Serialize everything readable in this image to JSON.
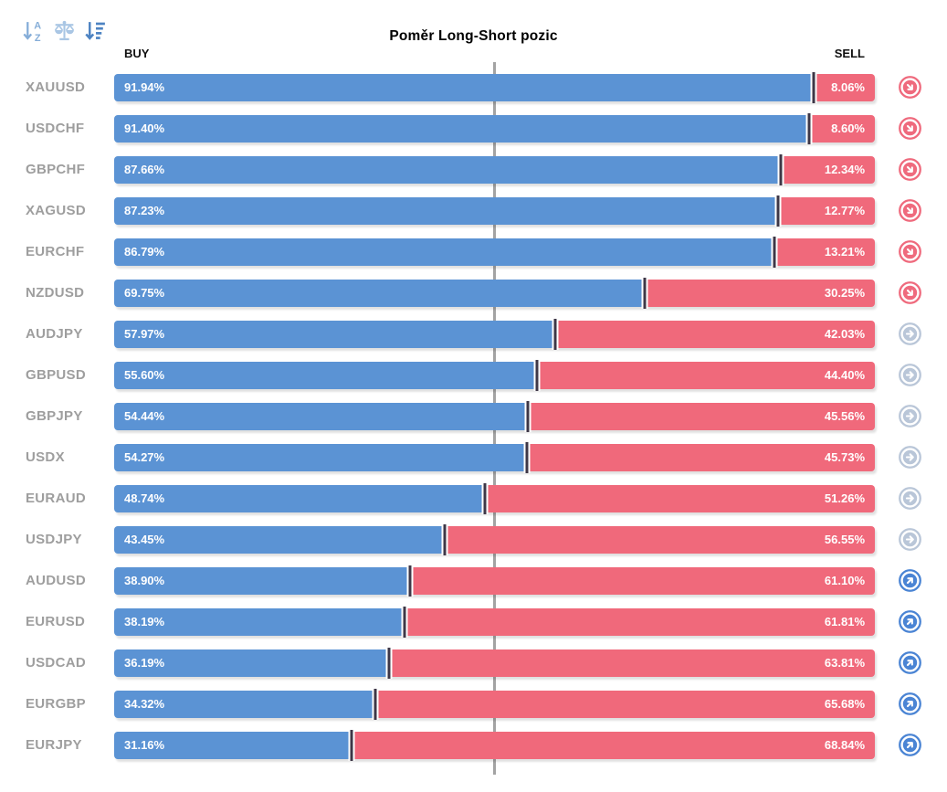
{
  "title": "Poměr Long-Short pozic",
  "toolbar": {
    "icons": [
      {
        "name": "sort-alphabetical-icon",
        "color": "#85add8"
      },
      {
        "name": "balance-scale-icon",
        "color": "#a9c6e4"
      },
      {
        "name": "sort-by-value-icon",
        "color": "#4d83c2"
      }
    ]
  },
  "columns": {
    "buy_label": "BUY",
    "sell_label": "SELL"
  },
  "colors": {
    "buy": "#5b93d4",
    "sell": "#f0697b",
    "divider": "#3e3747",
    "center_line": "#a3a3a3",
    "pair_label": "#9e9e9e",
    "signal_down": "#ef6a7d",
    "signal_neutral": "#b9c6d8",
    "signal_up": "#4a84d4"
  },
  "chart_data": {
    "type": "bar",
    "orientation": "horizontal-stacked",
    "title": "Poměr Long-Short pozic",
    "series_names": [
      "BUY",
      "SELL"
    ],
    "xlim": [
      0,
      100
    ],
    "center_marker_at": 50,
    "unit": "%",
    "rows": [
      {
        "pair": "XAUUSD",
        "buy": 91.94,
        "sell": 8.06,
        "signal": "down"
      },
      {
        "pair": "USDCHF",
        "buy": 91.4,
        "sell": 8.6,
        "signal": "down"
      },
      {
        "pair": "GBPCHF",
        "buy": 87.66,
        "sell": 12.34,
        "signal": "down"
      },
      {
        "pair": "XAGUSD",
        "buy": 87.23,
        "sell": 12.77,
        "signal": "down"
      },
      {
        "pair": "EURCHF",
        "buy": 86.79,
        "sell": 13.21,
        "signal": "down"
      },
      {
        "pair": "NZDUSD",
        "buy": 69.75,
        "sell": 30.25,
        "signal": "down"
      },
      {
        "pair": "AUDJPY",
        "buy": 57.97,
        "sell": 42.03,
        "signal": "neutral"
      },
      {
        "pair": "GBPUSD",
        "buy": 55.6,
        "sell": 44.4,
        "signal": "neutral"
      },
      {
        "pair": "GBPJPY",
        "buy": 54.44,
        "sell": 45.56,
        "signal": "neutral"
      },
      {
        "pair": "USDX",
        "buy": 54.27,
        "sell": 45.73,
        "signal": "neutral"
      },
      {
        "pair": "EURAUD",
        "buy": 48.74,
        "sell": 51.26,
        "signal": "neutral"
      },
      {
        "pair": "USDJPY",
        "buy": 43.45,
        "sell": 56.55,
        "signal": "neutral"
      },
      {
        "pair": "AUDUSD",
        "buy": 38.9,
        "sell": 61.1,
        "signal": "up"
      },
      {
        "pair": "EURUSD",
        "buy": 38.19,
        "sell": 61.81,
        "signal": "up"
      },
      {
        "pair": "USDCAD",
        "buy": 36.19,
        "sell": 63.81,
        "signal": "up"
      },
      {
        "pair": "EURGBP",
        "buy": 34.32,
        "sell": 65.68,
        "signal": "up"
      },
      {
        "pair": "EURJPY",
        "buy": 31.16,
        "sell": 68.84,
        "signal": "up"
      }
    ]
  }
}
